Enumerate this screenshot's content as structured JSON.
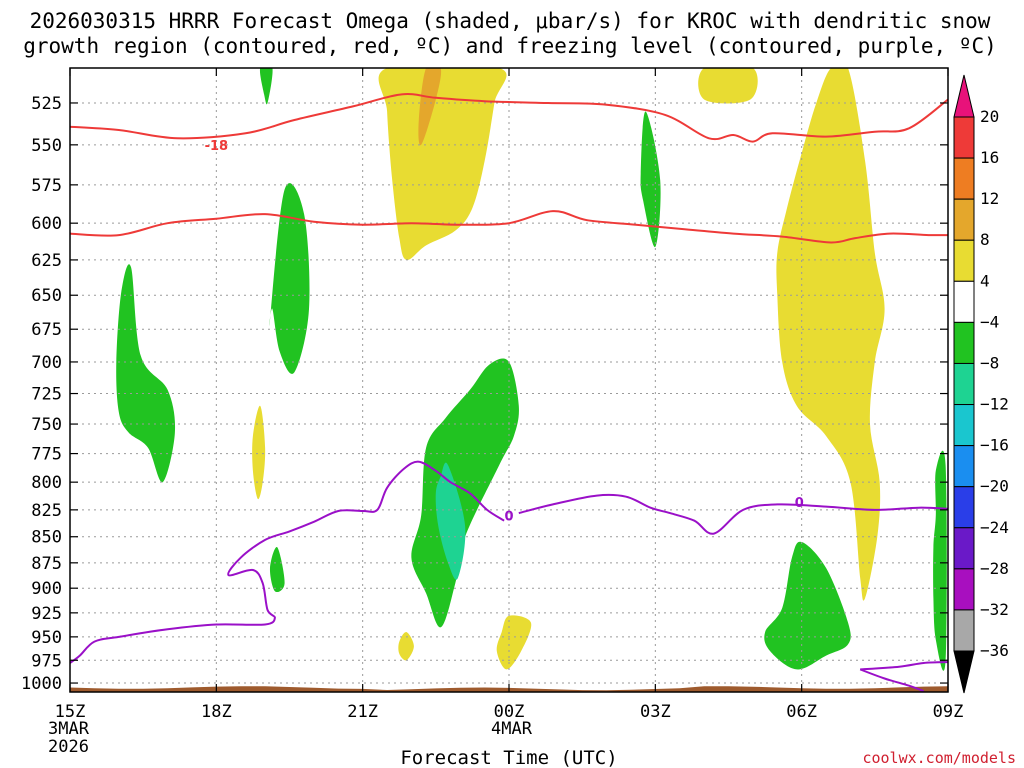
{
  "chart_data": {
    "type": "time-height cross-section",
    "title_line1": "2026030315 HRRR Forecast Omega (shaded, μbar/s) for KROC with dendritic snow",
    "title_line2": "growth region (contoured, red, ºC) and freezing level (contoured, purple, ºC)",
    "xlabel": "Forecast Time (UTC)",
    "x_ticks": [
      {
        "hour": 0,
        "label": "15Z",
        "sub1": "3MAR",
        "sub2": "2026"
      },
      {
        "hour": 3,
        "label": "18Z"
      },
      {
        "hour": 6,
        "label": "21Z"
      },
      {
        "hour": 9,
        "label": "00Z",
        "sub1": "4MAR"
      },
      {
        "hour": 12,
        "label": "03Z"
      },
      {
        "hour": 15,
        "label": "06Z"
      },
      {
        "hour": 18,
        "label": "09Z"
      }
    ],
    "x_range_hours": [
      0,
      18
    ],
    "y_ticks": [
      525,
      550,
      575,
      600,
      625,
      650,
      675,
      700,
      725,
      750,
      775,
      800,
      825,
      850,
      875,
      900,
      925,
      950,
      975,
      1000
    ],
    "y_range_hpa": [
      1010,
      505
    ],
    "colorbar": {
      "labels": [
        "20",
        "16",
        "12",
        "8",
        "4",
        "-4",
        "-8",
        "-12",
        "-16",
        "-20",
        "-24",
        "-28",
        "-32",
        "-36"
      ],
      "bins": [
        {
          "lo": 20,
          "hi": 24,
          "color": "#e8127a",
          "extend": "max"
        },
        {
          "lo": 16,
          "hi": 20,
          "color": "#ee3a38"
        },
        {
          "lo": 12,
          "hi": 16,
          "color": "#ee7d22"
        },
        {
          "lo": 8,
          "hi": 12,
          "color": "#e4a72c"
        },
        {
          "lo": 4,
          "hi": 8,
          "color": "#e8dc32"
        },
        {
          "lo": -4,
          "hi": 4,
          "color": "#ffffff"
        },
        {
          "lo": -8,
          "hi": -4,
          "color": "#21c321"
        },
        {
          "lo": -12,
          "hi": -8,
          "color": "#1ed392"
        },
        {
          "lo": -16,
          "hi": -12,
          "color": "#1ac6cf"
        },
        {
          "lo": -20,
          "hi": -16,
          "color": "#1a8ef0"
        },
        {
          "lo": -24,
          "hi": -20,
          "color": "#2a3ee8"
        },
        {
          "lo": -28,
          "hi": -24,
          "color": "#6a19c8"
        },
        {
          "lo": -32,
          "hi": -28,
          "color": "#a80fbf"
        },
        {
          "lo": -36,
          "hi": -32,
          "color": "#a8a8a8"
        },
        {
          "lo": -40,
          "hi": -36,
          "color": "#000000",
          "extend": "min"
        }
      ]
    },
    "omega_regions": [
      {
        "name": "green-region-1",
        "color": "#21c321",
        "points": [
          [
            1.05,
            648
          ],
          [
            1.25,
            630
          ],
          [
            1.45,
            695
          ],
          [
            2.0,
            722
          ],
          [
            2.15,
            757
          ],
          [
            1.9,
            800
          ],
          [
            1.6,
            770
          ],
          [
            1.2,
            757
          ],
          [
            1.0,
            740
          ],
          [
            0.95,
            700
          ]
        ]
      },
      {
        "name": "green-region-2",
        "color": "#21c321",
        "points": [
          [
            4.1,
            668
          ],
          [
            4.4,
            578
          ],
          [
            4.8,
            594
          ],
          [
            4.9,
            660
          ],
          [
            4.6,
            708
          ],
          [
            4.3,
            692
          ],
          [
            4.15,
            660
          ]
        ]
      },
      {
        "name": "green-region-3",
        "color": "#21c321",
        "points": [
          [
            8.2,
            722
          ],
          [
            8.6,
            702
          ],
          [
            9.0,
            700
          ],
          [
            9.2,
            735
          ],
          [
            9.1,
            760
          ],
          [
            8.8,
            785
          ],
          [
            8.1,
            850
          ],
          [
            7.9,
            895
          ],
          [
            7.6,
            940
          ],
          [
            7.3,
            905
          ],
          [
            7.0,
            870
          ],
          [
            7.2,
            830
          ],
          [
            7.3,
            770
          ],
          [
            7.7,
            745
          ]
        ]
      },
      {
        "name": "teal-region",
        "color": "#1ed392",
        "points": [
          [
            7.75,
            785
          ],
          [
            8.1,
            840
          ],
          [
            7.95,
            890
          ],
          [
            7.75,
            875
          ],
          [
            7.55,
            840
          ],
          [
            7.5,
            810
          ],
          [
            7.6,
            795
          ]
        ]
      },
      {
        "name": "green-region-4",
        "color": "#21c321",
        "points": [
          [
            11.8,
            530
          ],
          [
            12.1,
            572
          ],
          [
            12.0,
            616
          ],
          [
            11.75,
            585
          ],
          [
            11.7,
            568
          ]
        ]
      },
      {
        "name": "green-region-5",
        "color": "#21c321",
        "points": [
          [
            15.0,
            855
          ],
          [
            15.5,
            880
          ],
          [
            15.95,
            935
          ],
          [
            15.95,
            958
          ],
          [
            15.5,
            970
          ],
          [
            14.9,
            985
          ],
          [
            14.35,
            965
          ],
          [
            14.25,
            945
          ],
          [
            14.6,
            920
          ],
          [
            14.8,
            870
          ]
        ]
      },
      {
        "name": "green-region-6",
        "color": "#21c321",
        "points": [
          [
            17.75,
            790
          ],
          [
            17.95,
            785
          ],
          [
            17.95,
            975
          ],
          [
            17.75,
            953
          ],
          [
            17.7,
            910
          ],
          [
            17.7,
            860
          ],
          [
            17.75,
            830
          ]
        ]
      },
      {
        "name": "green-region-7",
        "color": "#21c321",
        "points": [
          [
            4.1,
            880
          ],
          [
            4.25,
            860
          ],
          [
            4.4,
            895
          ],
          [
            4.2,
            903
          ]
        ]
      },
      {
        "name": "green-region-8",
        "color": "#21c321",
        "points": [
          [
            3.9,
            505
          ],
          [
            4.15,
            505
          ],
          [
            4.05,
            525
          ],
          [
            3.98,
            520
          ]
        ]
      }
    ],
    "positive_regions": [
      {
        "name": "yellow-region-1",
        "color": "#e8dc32",
        "points": [
          [
            6.5,
            505
          ],
          [
            8.8,
            505
          ],
          [
            8.7,
            525
          ],
          [
            8.5,
            560
          ],
          [
            8.25,
            590
          ],
          [
            7.9,
            605
          ],
          [
            7.3,
            615
          ],
          [
            6.9,
            625
          ],
          [
            6.75,
            610
          ],
          [
            6.6,
            570
          ],
          [
            6.5,
            530
          ]
        ]
      },
      {
        "name": "orange-region",
        "color": "#e4a72c",
        "points": [
          [
            7.3,
            505
          ],
          [
            7.6,
            505
          ],
          [
            7.5,
            523
          ],
          [
            7.2,
            550
          ],
          [
            7.15,
            535
          ]
        ]
      },
      {
        "name": "yellow-region-2",
        "color": "#e8dc32",
        "points": [
          [
            13.0,
            505
          ],
          [
            14.0,
            505
          ],
          [
            13.95,
            523
          ],
          [
            13.0,
            523
          ]
        ]
      },
      {
        "name": "yellow-region-3",
        "color": "#e8dc32",
        "points": [
          [
            15.6,
            505
          ],
          [
            15.95,
            505
          ],
          [
            16.3,
            560
          ],
          [
            16.5,
            620
          ],
          [
            16.7,
            660
          ],
          [
            16.5,
            700
          ],
          [
            16.4,
            750
          ],
          [
            16.6,
            800
          ],
          [
            16.55,
            850
          ],
          [
            16.3,
            910
          ],
          [
            16.2,
            890
          ],
          [
            16.0,
            800
          ],
          [
            15.5,
            760
          ],
          [
            14.9,
            735
          ],
          [
            14.6,
            700
          ],
          [
            14.5,
            650
          ],
          [
            14.5,
            620
          ],
          [
            14.7,
            590
          ],
          [
            15.0,
            555
          ],
          [
            15.3,
            525
          ]
        ]
      },
      {
        "name": "yellow-region-4",
        "color": "#e8dc32",
        "points": [
          [
            3.9,
            735
          ],
          [
            4.0,
            770
          ],
          [
            3.95,
            800
          ],
          [
            3.85,
            815
          ],
          [
            3.75,
            790
          ],
          [
            3.75,
            760
          ]
        ]
      },
      {
        "name": "yellow-region-5",
        "color": "#e8dc32",
        "points": [
          [
            6.75,
            955
          ],
          [
            6.9,
            945
          ],
          [
            7.05,
            960
          ],
          [
            6.9,
            975
          ],
          [
            6.75,
            968
          ]
        ]
      },
      {
        "name": "yellow-region-6",
        "color": "#e8dc32",
        "points": [
          [
            9.0,
            928
          ],
          [
            9.45,
            935
          ],
          [
            9.25,
            965
          ],
          [
            8.95,
            985
          ],
          [
            8.75,
            965
          ],
          [
            8.85,
            945
          ]
        ]
      }
    ],
    "dgz_contours": [
      {
        "label": "-18",
        "label_at": [
          3.0,
          550
        ],
        "points": [
          [
            0,
            539
          ],
          [
            1.0,
            541
          ],
          [
            2.2,
            546
          ],
          [
            3.6,
            543
          ],
          [
            4.6,
            535
          ],
          [
            5.8,
            527
          ],
          [
            6.8,
            520
          ],
          [
            7.5,
            522
          ],
          [
            8.5,
            524
          ],
          [
            9.8,
            525
          ],
          [
            11.0,
            526
          ],
          [
            12.2,
            532
          ],
          [
            13.1,
            546
          ],
          [
            13.6,
            544
          ],
          [
            14.0,
            548
          ],
          [
            14.4,
            543
          ],
          [
            15.5,
            545
          ],
          [
            16.5,
            542
          ],
          [
            17.2,
            540
          ],
          [
            18,
            523
          ]
        ]
      },
      {
        "label": "",
        "label_at": null,
        "points": [
          [
            0,
            607
          ],
          [
            1.0,
            608
          ],
          [
            2.0,
            600
          ],
          [
            3.0,
            597
          ],
          [
            4.0,
            594
          ],
          [
            5.0,
            599
          ],
          [
            6.0,
            601
          ],
          [
            7.0,
            600
          ],
          [
            8.0,
            601
          ],
          [
            9.0,
            600
          ],
          [
            9.9,
            592
          ],
          [
            10.6,
            598
          ],
          [
            11.6,
            601
          ],
          [
            12.6,
            604
          ],
          [
            13.6,
            607
          ],
          [
            14.6,
            609
          ],
          [
            15.6,
            613
          ],
          [
            16.1,
            610
          ],
          [
            16.8,
            607
          ],
          [
            17.6,
            608
          ],
          [
            18,
            608
          ]
        ]
      }
    ],
    "freezing_level": {
      "label": "0",
      "label_positions": [
        [
          9.0,
          830
        ],
        [
          14.95,
          818
        ]
      ],
      "lower_branch": [
        [
          0,
          978
        ],
        [
          0.2,
          970
        ],
        [
          0.5,
          955
        ],
        [
          1.0,
          950
        ],
        [
          2.0,
          942
        ],
        [
          3.0,
          937
        ],
        [
          4.0,
          937
        ],
        [
          4.2,
          930
        ],
        [
          4.05,
          922
        ],
        [
          3.95,
          895
        ],
        [
          3.75,
          882
        ],
        [
          3.25,
          887
        ],
        [
          3.5,
          870
        ],
        [
          4.0,
          853
        ],
        [
          4.5,
          845
        ],
        [
          5.0,
          836
        ],
        [
          5.5,
          826
        ],
        [
          6.0,
          826
        ],
        [
          6.3,
          825
        ],
        [
          6.5,
          805
        ],
        [
          6.85,
          788
        ],
        [
          7.15,
          782
        ],
        [
          7.5,
          790
        ],
        [
          7.8,
          800
        ],
        [
          8.2,
          810
        ],
        [
          8.55,
          825
        ],
        [
          8.9,
          835
        ]
      ],
      "upper_branch": [
        [
          9.2,
          828
        ],
        [
          9.9,
          820
        ],
        [
          10.8,
          812
        ],
        [
          11.4,
          813
        ],
        [
          11.9,
          823
        ],
        [
          12.3,
          828
        ],
        [
          12.8,
          835
        ],
        [
          13.2,
          847
        ],
        [
          13.8,
          825
        ],
        [
          14.5,
          820
        ],
        [
          15.5,
          822
        ],
        [
          16.5,
          825
        ],
        [
          17.4,
          823
        ],
        [
          18,
          824
        ]
      ],
      "bottom_branch": [
        [
          16.2,
          985
        ],
        [
          16.7,
          995
        ],
        [
          17.2,
          1003
        ],
        [
          17.5,
          1009
        ]
      ],
      "bottom_extra": [
        [
          16.2,
          985
        ],
        [
          17.0,
          982
        ],
        [
          17.5,
          978
        ],
        [
          18,
          977
        ]
      ]
    },
    "ground": {
      "color": "#9e5a2d",
      "description": "terrain band near surface"
    },
    "credit": "coolwx.com/models"
  }
}
